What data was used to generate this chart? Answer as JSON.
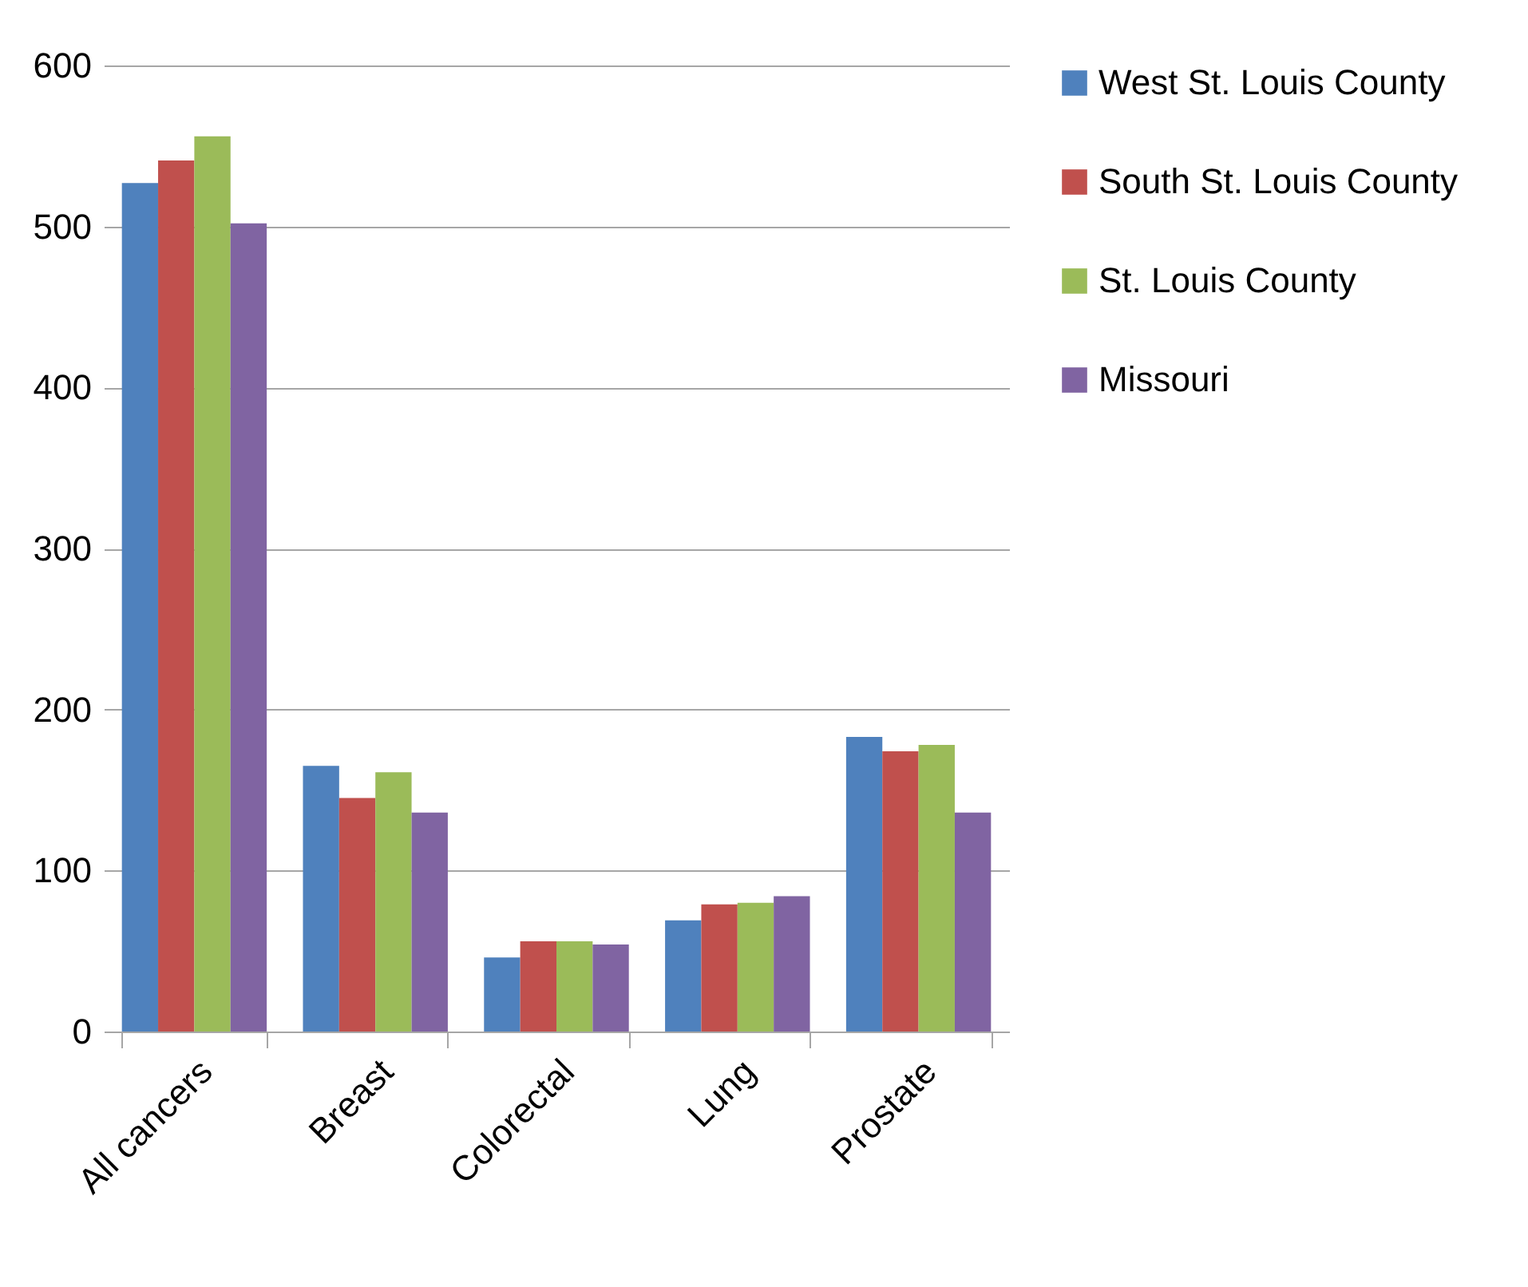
{
  "chart_data": {
    "type": "bar",
    "categories": [
      "All cancers",
      "Breast",
      "Colorectal",
      "Lung",
      "Prostate"
    ],
    "series": [
      {
        "name": "West St. Louis County",
        "color": "#4f81bd",
        "values": [
          527,
          165,
          46,
          69,
          183
        ]
      },
      {
        "name": "South St. Louis County",
        "color": "#c0504d",
        "values": [
          541,
          145,
          56,
          79,
          174
        ]
      },
      {
        "name": "St. Louis County",
        "color": "#9bbb59",
        "values": [
          556,
          161,
          56,
          80,
          178
        ]
      },
      {
        "name": "Missouri",
        "color": "#8064a2",
        "values": [
          502,
          136,
          54,
          84,
          136
        ]
      }
    ],
    "ylim": [
      0,
      600
    ],
    "yticks": [
      0,
      100,
      200,
      300,
      400,
      500,
      600
    ],
    "grid": "y",
    "legend": "right"
  }
}
